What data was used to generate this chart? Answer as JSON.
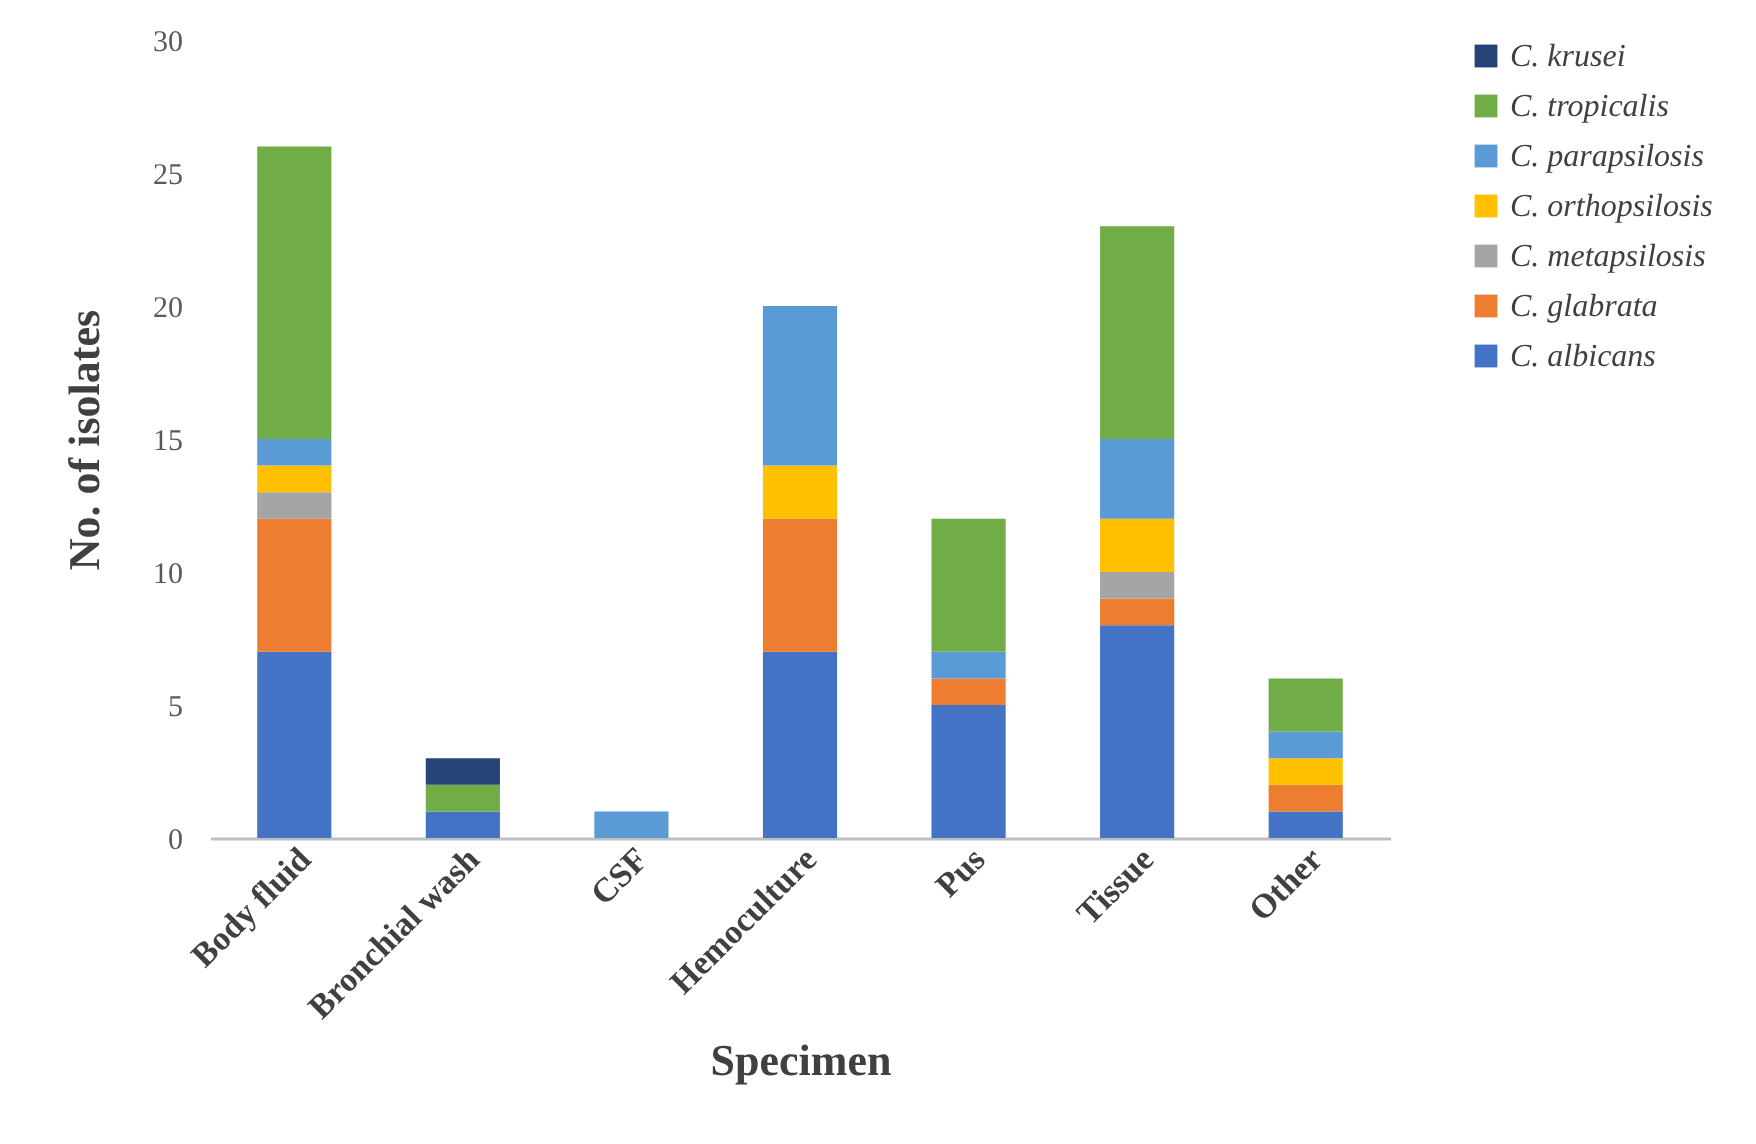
{
  "chart_data": {
    "type": "bar",
    "stacked": true,
    "xlabel": "Specimen",
    "ylabel": "No. of isolates",
    "categories": [
      "Body fluid",
      "Bronchial wash",
      "CSF",
      "Hemoculture",
      "Pus",
      "Tissue",
      "Other"
    ],
    "ylim": [
      0,
      30
    ],
    "yticks": [
      0,
      5,
      10,
      15,
      20,
      25,
      30
    ],
    "grid": false,
    "legend": "right",
    "series": [
      {
        "name": "C. albicans",
        "color": "#4472c4",
        "values": [
          7,
          1,
          null,
          7,
          5,
          8,
          1
        ]
      },
      {
        "name": "C. glabrata",
        "color": "#ed7d31",
        "values": [
          5,
          null,
          null,
          5,
          1,
          1,
          1
        ]
      },
      {
        "name": "C. metapsilosis",
        "color": "#a5a5a5",
        "values": [
          1,
          null,
          null,
          null,
          null,
          1,
          null
        ]
      },
      {
        "name": "C. orthopsilosis",
        "color": "#ffc000",
        "values": [
          1,
          null,
          null,
          2,
          null,
          2,
          1
        ]
      },
      {
        "name": "C. parapsilosis",
        "color": "#5b9bd5",
        "values": [
          1,
          null,
          1,
          6,
          1,
          3,
          1
        ]
      },
      {
        "name": "C. tropicalis",
        "color": "#70ad47",
        "values": [
          11,
          1,
          null,
          null,
          5,
          8,
          2
        ]
      },
      {
        "name": "C. krusei",
        "color": "#264478",
        "values": [
          null,
          1,
          null,
          null,
          null,
          null,
          null
        ]
      }
    ]
  }
}
